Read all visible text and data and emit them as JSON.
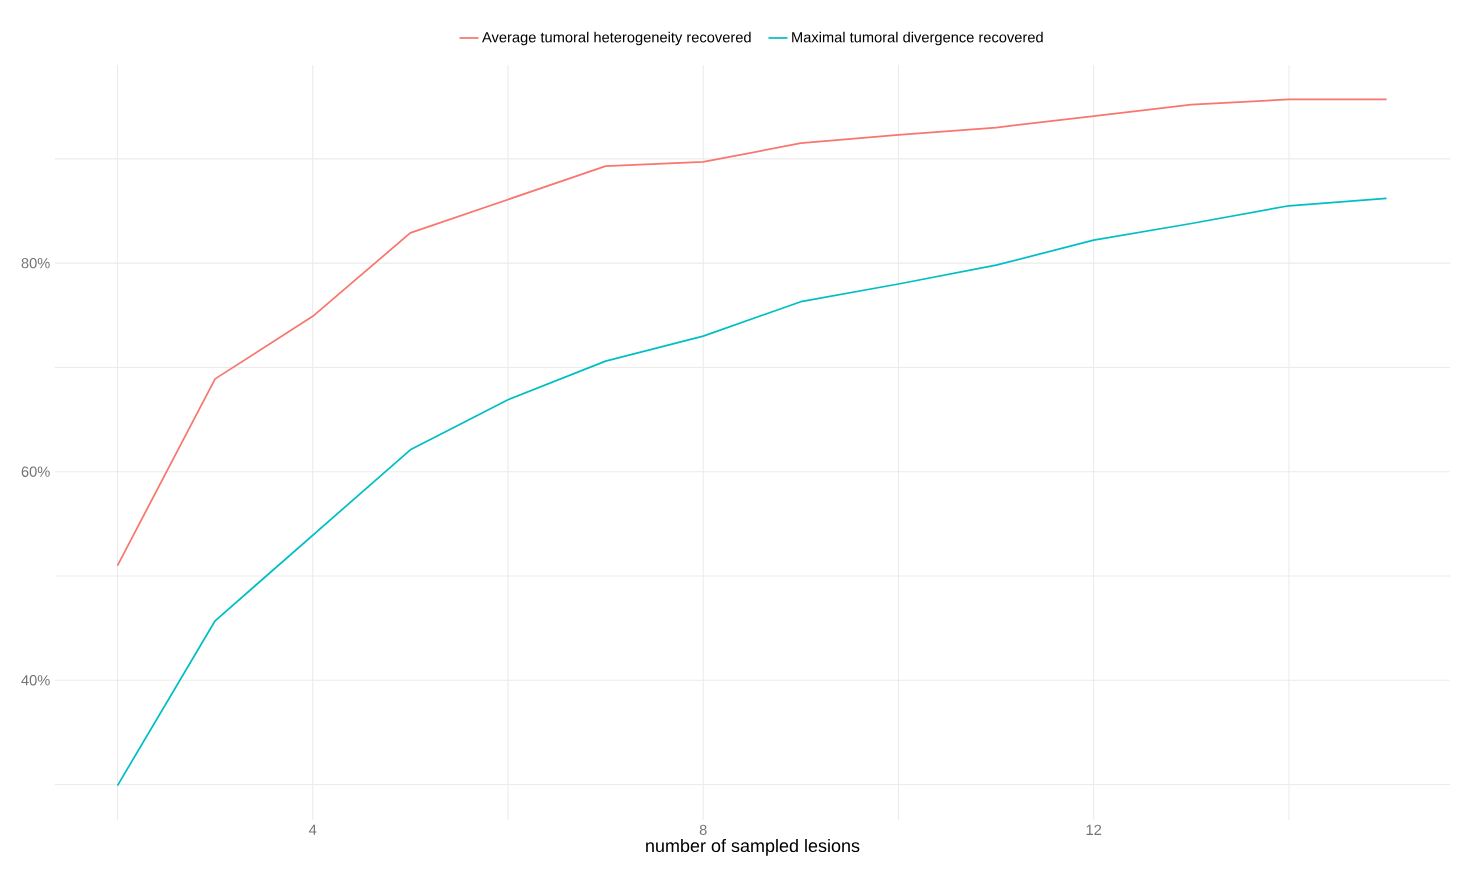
{
  "chart_data": {
    "type": "line",
    "xlabel": "number of sampled lesions",
    "x": [
      2,
      3,
      4,
      5,
      6,
      7,
      8,
      9,
      10,
      11,
      12,
      13,
      14,
      15
    ],
    "series": [
      {
        "name": "Average tumoral heterogeneity recovered",
        "color": "#f8766d",
        "values": [
          51.0,
          68.9,
          74.9,
          82.9,
          86.1,
          89.3,
          89.7,
          91.5,
          92.3,
          93.0,
          94.1,
          95.2,
          95.7,
          95.7
        ]
      },
      {
        "name": "Maximal tumoral divergence recovered",
        "color": "#00bfc4",
        "values": [
          29.9,
          45.7,
          53.9,
          62.1,
          66.9,
          70.6,
          73.0,
          76.3,
          78.0,
          79.8,
          82.2,
          83.8,
          85.5,
          86.2
        ]
      }
    ],
    "xlim": [
      1.36,
      15.65
    ],
    "ylim": [
      26.6,
      99
    ],
    "xticks": [
      {
        "value": 2,
        "label": null
      },
      4,
      {
        "value": 6,
        "label": null
      },
      8,
      {
        "value": 10,
        "label": null
      },
      12,
      {
        "value": 14,
        "label": null
      }
    ],
    "yticks": [
      {
        "value": 30,
        "label": null
      },
      {
        "value": 40,
        "label": "40%"
      },
      {
        "value": 50,
        "label": null
      },
      {
        "value": 60,
        "label": "60%"
      },
      {
        "value": 70,
        "label": null
      },
      {
        "value": 80,
        "label": "80%"
      },
      {
        "value": 90,
        "label": null
      }
    ],
    "grid": true,
    "legend": "top",
    "marker": "none",
    "line_style": "solid"
  }
}
